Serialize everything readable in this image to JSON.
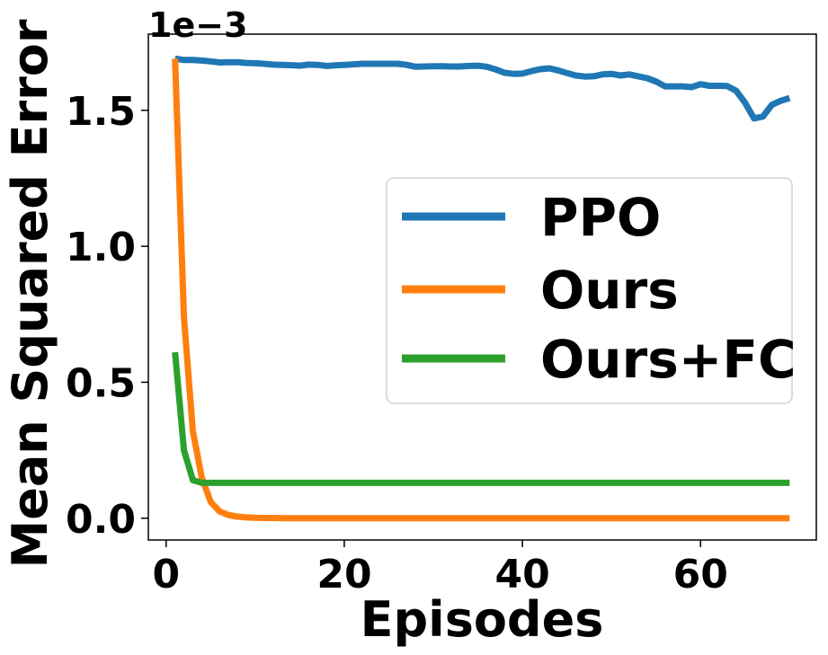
{
  "chart_data": {
    "type": "line",
    "xlabel": "Episodes",
    "ylabel": "Mean Squared Error",
    "y_offset_label": "1e−3",
    "xlim": [
      -2,
      73
    ],
    "ylim": [
      -0.08,
      1.78
    ],
    "xticks": [
      0,
      20,
      40,
      60
    ],
    "xtick_labels": [
      "0",
      "20",
      "40",
      "60"
    ],
    "yticks": [
      0.0,
      0.5,
      1.0,
      1.5
    ],
    "ytick_labels": [
      "0.0",
      "0.5",
      "1.0",
      "1.5"
    ],
    "grid": false,
    "legend_position": "center-right",
    "series": [
      {
        "name": "PPO",
        "color": "#1f77b4",
        "x": [
          1,
          2,
          3,
          4,
          5,
          6,
          7,
          8,
          9,
          10,
          11,
          12,
          13,
          14,
          15,
          16,
          17,
          18,
          19,
          20,
          21,
          22,
          23,
          24,
          25,
          26,
          27,
          28,
          29,
          30,
          31,
          32,
          33,
          34,
          35,
          36,
          37,
          38,
          39,
          40,
          41,
          42,
          43,
          44,
          45,
          46,
          47,
          48,
          49,
          50,
          51,
          52,
          53,
          54,
          55,
          56,
          57,
          58,
          59,
          60,
          61,
          62,
          63,
          64,
          65,
          66,
          67,
          68,
          69,
          70
        ],
        "y": [
          1.69,
          1.685,
          1.685,
          1.683,
          1.68,
          1.676,
          1.677,
          1.677,
          1.674,
          1.673,
          1.671,
          1.668,
          1.667,
          1.666,
          1.664,
          1.668,
          1.667,
          1.663,
          1.665,
          1.667,
          1.669,
          1.671,
          1.671,
          1.671,
          1.671,
          1.671,
          1.667,
          1.66,
          1.661,
          1.662,
          1.662,
          1.661,
          1.661,
          1.663,
          1.664,
          1.66,
          1.65,
          1.638,
          1.634,
          1.635,
          1.644,
          1.651,
          1.654,
          1.647,
          1.637,
          1.628,
          1.624,
          1.625,
          1.632,
          1.634,
          1.628,
          1.632,
          1.625,
          1.618,
          1.606,
          1.588,
          1.588,
          1.588,
          1.585,
          1.596,
          1.59,
          1.59,
          1.589,
          1.572,
          1.528,
          1.47,
          1.477,
          1.52,
          1.535,
          1.545
        ]
      },
      {
        "name": "Ours",
        "color": "#ff7f0e",
        "x": [
          1,
          2,
          3,
          4,
          5,
          6,
          7,
          8,
          9,
          10,
          11,
          12,
          13,
          14,
          15,
          16,
          17,
          18,
          19,
          20,
          21,
          22,
          23,
          24,
          25,
          26,
          27,
          28,
          29,
          30,
          31,
          32,
          33,
          34,
          35,
          36,
          37,
          38,
          39,
          40,
          41,
          42,
          43,
          44,
          45,
          46,
          47,
          48,
          49,
          50,
          51,
          52,
          53,
          54,
          55,
          56,
          57,
          58,
          59,
          60,
          61,
          62,
          63,
          64,
          65,
          66,
          67,
          68,
          69,
          70
        ],
        "y": [
          1.69,
          0.74,
          0.32,
          0.15,
          0.06,
          0.025,
          0.012,
          0.006,
          0.003,
          0.002,
          0.001,
          0.001,
          0,
          0,
          0,
          0,
          0,
          0,
          0,
          0,
          0,
          0,
          0,
          0,
          0,
          0,
          0,
          0,
          0,
          0,
          0,
          0,
          0,
          0,
          0,
          0,
          0,
          0,
          0,
          0,
          0,
          0,
          0,
          0,
          0,
          0,
          0,
          0,
          0,
          0,
          0,
          0,
          0,
          0,
          0,
          0,
          0,
          0,
          0,
          0,
          0,
          0,
          0,
          0,
          0,
          0,
          0,
          0,
          0,
          0
        ]
      },
      {
        "name": "Ours+FC",
        "color": "#2ca02c",
        "x": [
          1,
          2,
          3,
          4,
          5,
          6,
          7,
          8,
          9,
          10,
          15,
          20,
          25,
          30,
          35,
          40,
          45,
          50,
          55,
          60,
          65,
          70
        ],
        "y": [
          0.61,
          0.25,
          0.14,
          0.13,
          0.13,
          0.13,
          0.13,
          0.13,
          0.13,
          0.13,
          0.13,
          0.13,
          0.13,
          0.13,
          0.13,
          0.13,
          0.13,
          0.13,
          0.13,
          0.13,
          0.13,
          0.13
        ]
      }
    ]
  }
}
